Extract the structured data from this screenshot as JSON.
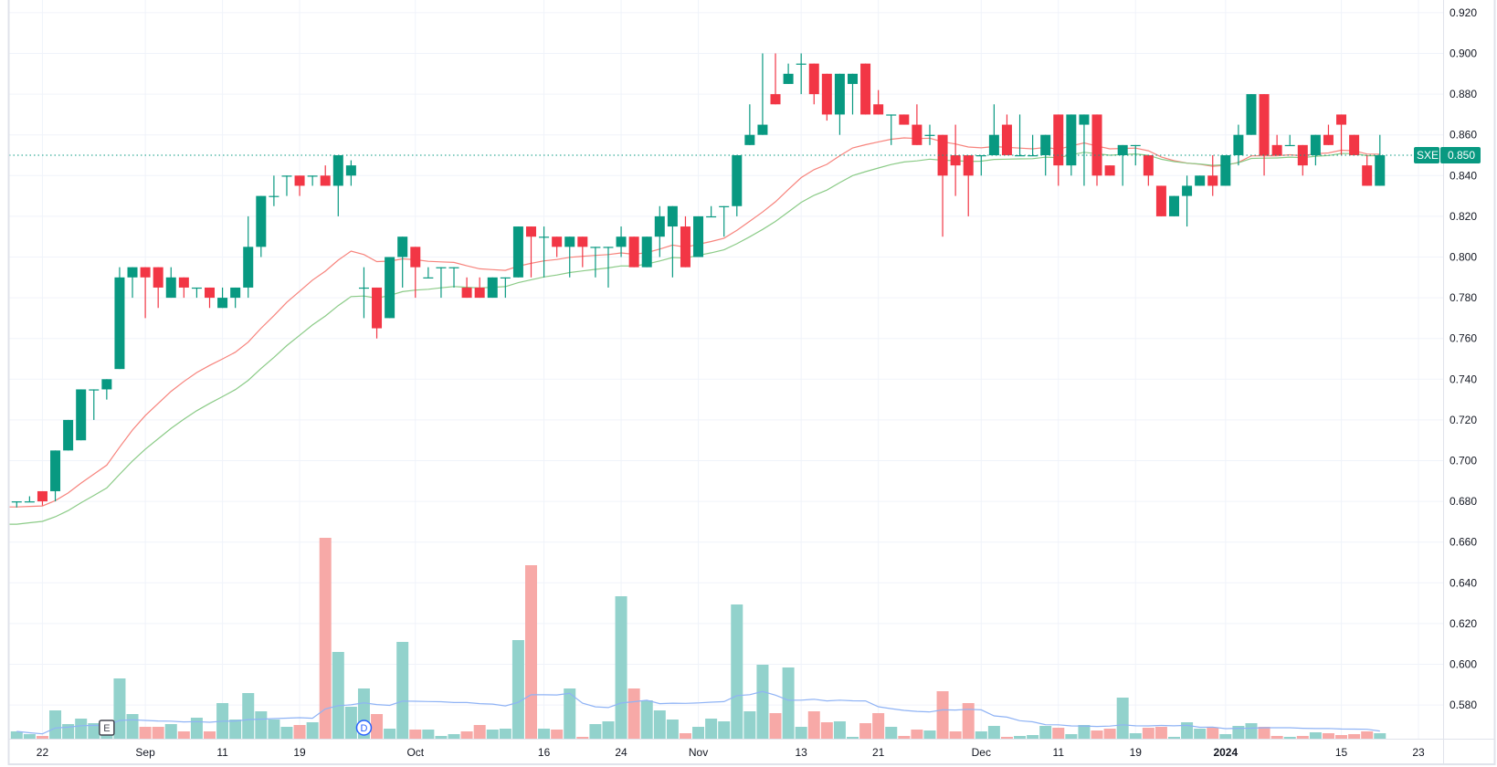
{
  "chart_data": {
    "type": "candlestick",
    "symbol": "SXE",
    "last_price_label": "0.850",
    "last_price": 0.85,
    "ylim": [
      0.565,
      0.927
    ],
    "y_ticks": [
      "0.920",
      "0.900",
      "0.880",
      "0.860",
      "0.840",
      "0.820",
      "0.800",
      "0.780",
      "0.760",
      "0.740",
      "0.720",
      "0.700",
      "0.680",
      "0.660",
      "0.640",
      "0.620",
      "0.600",
      "0.580"
    ],
    "x_ticks": [
      {
        "label": "22",
        "index": 2
      },
      {
        "label": "Sep",
        "index": 10
      },
      {
        "label": "11",
        "index": 16
      },
      {
        "label": "19",
        "index": 22
      },
      {
        "label": "Oct",
        "index": 31
      },
      {
        "label": "16",
        "index": 41
      },
      {
        "label": "24",
        "index": 47
      },
      {
        "label": "Nov",
        "index": 53
      },
      {
        "label": "13",
        "index": 61
      },
      {
        "label": "21",
        "index": 67
      },
      {
        "label": "Dec",
        "index": 75
      },
      {
        "label": "11",
        "index": 81
      },
      {
        "label": "19",
        "index": 87
      },
      {
        "label": "2024",
        "index": 94,
        "bold": true
      },
      {
        "label": "15",
        "index": 103
      },
      {
        "label": "23",
        "index": 109
      }
    ],
    "ohlc_fields": [
      "open",
      "high",
      "low",
      "close"
    ],
    "candles": [
      [
        0.68,
        0.68,
        0.677,
        0.68
      ],
      [
        0.68,
        0.6825,
        0.68,
        0.68
      ],
      [
        0.685,
        0.685,
        0.678,
        0.68
      ],
      [
        0.685,
        0.705,
        0.68,
        0.705
      ],
      [
        0.705,
        0.72,
        0.705,
        0.72
      ],
      [
        0.71,
        0.735,
        0.71,
        0.735
      ],
      [
        0.735,
        0.735,
        0.72,
        0.735
      ],
      [
        0.735,
        0.74,
        0.73,
        0.74
      ],
      [
        0.745,
        0.795,
        0.745,
        0.79
      ],
      [
        0.79,
        0.795,
        0.78,
        0.795
      ],
      [
        0.795,
        0.795,
        0.77,
        0.79
      ],
      [
        0.795,
        0.795,
        0.775,
        0.785
      ],
      [
        0.78,
        0.795,
        0.78,
        0.79
      ],
      [
        0.79,
        0.79,
        0.78,
        0.785
      ],
      [
        0.785,
        0.785,
        0.78,
        0.785
      ],
      [
        0.785,
        0.785,
        0.775,
        0.78
      ],
      [
        0.775,
        0.785,
        0.775,
        0.78
      ],
      [
        0.78,
        0.785,
        0.775,
        0.785
      ],
      [
        0.785,
        0.82,
        0.78,
        0.805
      ],
      [
        0.805,
        0.83,
        0.8,
        0.83
      ],
      [
        0.83,
        0.84,
        0.825,
        0.83
      ],
      [
        0.84,
        0.84,
        0.83,
        0.84
      ],
      [
        0.84,
        0.84,
        0.83,
        0.835
      ],
      [
        0.84,
        0.84,
        0.835,
        0.84
      ],
      [
        0.84,
        0.845,
        0.835,
        0.835
      ],
      [
        0.835,
        0.85,
        0.82,
        0.85
      ],
      [
        0.84,
        0.8475,
        0.835,
        0.845
      ],
      [
        0.785,
        0.795,
        0.77,
        0.785
      ],
      [
        0.785,
        0.785,
        0.76,
        0.765
      ],
      [
        0.77,
        0.8,
        0.77,
        0.8
      ],
      [
        0.8,
        0.81,
        0.785,
        0.81
      ],
      [
        0.805,
        0.805,
        0.78,
        0.795
      ],
      [
        0.79,
        0.795,
        0.79,
        0.79
      ],
      [
        0.795,
        0.795,
        0.78,
        0.795
      ],
      [
        0.795,
        0.795,
        0.785,
        0.795
      ],
      [
        0.785,
        0.79,
        0.78,
        0.78
      ],
      [
        0.785,
        0.79,
        0.78,
        0.78
      ],
      [
        0.78,
        0.79,
        0.78,
        0.79
      ],
      [
        0.79,
        0.79,
        0.78,
        0.79
      ],
      [
        0.79,
        0.815,
        0.79,
        0.815
      ],
      [
        0.815,
        0.815,
        0.79,
        0.81
      ],
      [
        0.81,
        0.815,
        0.79,
        0.81
      ],
      [
        0.81,
        0.81,
        0.8,
        0.805
      ],
      [
        0.805,
        0.81,
        0.79,
        0.81
      ],
      [
        0.81,
        0.81,
        0.795,
        0.805
      ],
      [
        0.805,
        0.805,
        0.79,
        0.805
      ],
      [
        0.805,
        0.805,
        0.785,
        0.805
      ],
      [
        0.805,
        0.815,
        0.8,
        0.81
      ],
      [
        0.81,
        0.81,
        0.795,
        0.795
      ],
      [
        0.795,
        0.81,
        0.795,
        0.81
      ],
      [
        0.81,
        0.825,
        0.8,
        0.82
      ],
      [
        0.815,
        0.825,
        0.79,
        0.825
      ],
      [
        0.815,
        0.82,
        0.795,
        0.795
      ],
      [
        0.8,
        0.82,
        0.8,
        0.82
      ],
      [
        0.82,
        0.825,
        0.82,
        0.82
      ],
      [
        0.825,
        0.825,
        0.81,
        0.825
      ],
      [
        0.825,
        0.85,
        0.82,
        0.85
      ],
      [
        0.855,
        0.875,
        0.855,
        0.86
      ],
      [
        0.86,
        0.9,
        0.86,
        0.865
      ],
      [
        0.88,
        0.9,
        0.875,
        0.875
      ],
      [
        0.885,
        0.895,
        0.885,
        0.89
      ],
      [
        0.895,
        0.9,
        0.88,
        0.895
      ],
      [
        0.895,
        0.895,
        0.875,
        0.88
      ],
      [
        0.89,
        0.89,
        0.867,
        0.87
      ],
      [
        0.87,
        0.89,
        0.86,
        0.89
      ],
      [
        0.885,
        0.89,
        0.87,
        0.89
      ],
      [
        0.895,
        0.895,
        0.87,
        0.87
      ],
      [
        0.875,
        0.882,
        0.87,
        0.87
      ],
      [
        0.87,
        0.87,
        0.855,
        0.87
      ],
      [
        0.87,
        0.87,
        0.865,
        0.865
      ],
      [
        0.865,
        0.875,
        0.855,
        0.855
      ],
      [
        0.86,
        0.865,
        0.855,
        0.86
      ],
      [
        0.86,
        0.86,
        0.81,
        0.84
      ],
      [
        0.85,
        0.865,
        0.83,
        0.845
      ],
      [
        0.85,
        0.85,
        0.82,
        0.84
      ],
      [
        0.85,
        0.85,
        0.84,
        0.85
      ],
      [
        0.85,
        0.875,
        0.85,
        0.86
      ],
      [
        0.865,
        0.87,
        0.85,
        0.85
      ],
      [
        0.85,
        0.87,
        0.85,
        0.85
      ],
      [
        0.85,
        0.86,
        0.85,
        0.85
      ],
      [
        0.85,
        0.86,
        0.84,
        0.86
      ],
      [
        0.87,
        0.87,
        0.835,
        0.845
      ],
      [
        0.845,
        0.87,
        0.84,
        0.87
      ],
      [
        0.865,
        0.87,
        0.835,
        0.87
      ],
      [
        0.87,
        0.87,
        0.835,
        0.84
      ],
      [
        0.845,
        0.845,
        0.84,
        0.84
      ],
      [
        0.85,
        0.855,
        0.835,
        0.855
      ],
      [
        0.855,
        0.855,
        0.845,
        0.855
      ],
      [
        0.85,
        0.85,
        0.835,
        0.84
      ],
      [
        0.835,
        0.835,
        0.82,
        0.82
      ],
      [
        0.82,
        0.83,
        0.82,
        0.83
      ],
      [
        0.83,
        0.84,
        0.815,
        0.835
      ],
      [
        0.835,
        0.84,
        0.835,
        0.84
      ],
      [
        0.84,
        0.85,
        0.83,
        0.835
      ],
      [
        0.835,
        0.85,
        0.835,
        0.85
      ],
      [
        0.85,
        0.865,
        0.845,
        0.86
      ],
      [
        0.86,
        0.88,
        0.86,
        0.88
      ],
      [
        0.88,
        0.88,
        0.84,
        0.85
      ],
      [
        0.855,
        0.86,
        0.85,
        0.85
      ],
      [
        0.855,
        0.86,
        0.855,
        0.855
      ],
      [
        0.855,
        0.855,
        0.84,
        0.845
      ],
      [
        0.85,
        0.86,
        0.845,
        0.86
      ],
      [
        0.86,
        0.865,
        0.855,
        0.855
      ],
      [
        0.87,
        0.87,
        0.85,
        0.865
      ],
      [
        0.86,
        0.86,
        0.85,
        0.85
      ],
      [
        0.845,
        0.85,
        0.835,
        0.835
      ],
      [
        0.835,
        0.86,
        0.835,
        0.85
      ]
    ],
    "volume_units": "relative",
    "volumes": [
      8,
      5,
      3,
      31,
      16,
      22,
      17,
      12,
      66,
      27,
      13,
      13,
      16,
      8,
      23,
      8,
      39,
      21,
      50,
      30,
      21,
      13,
      15,
      18,
      220,
      95,
      35,
      55,
      27,
      11,
      106,
      10,
      10,
      3,
      5,
      8,
      15,
      10,
      11,
      108,
      190,
      11,
      10,
      55,
      2,
      16,
      19,
      156,
      55,
      42,
      31,
      21,
      6,
      13,
      22,
      19,
      147,
      30,
      81,
      28,
      78,
      13,
      30,
      18,
      19,
      2,
      17,
      28,
      13,
      3,
      10,
      9,
      52,
      8,
      39,
      8,
      14,
      2,
      3,
      4,
      14,
      12,
      5,
      15,
      9,
      11,
      45,
      6,
      12,
      13,
      2,
      18,
      11,
      12,
      5,
      14,
      17,
      13,
      3,
      2,
      3,
      7,
      6,
      4,
      5,
      8,
      6
    ],
    "events": [
      {
        "label": "E",
        "index": 7,
        "kind": "earnings"
      },
      {
        "label": "D",
        "index": 27,
        "kind": "dividend"
      }
    ],
    "colors": {
      "up": "#089981",
      "down": "#F23645",
      "vol_up": "#92D2CC",
      "vol_down": "#F7A9A7",
      "ma_fast": "#F7837C",
      "ma_slow": "#8BCB87",
      "vol_ma": "#8FB3F5",
      "grid": "#F0F3FA",
      "axis_text": "#131722"
    },
    "grid": true
  }
}
